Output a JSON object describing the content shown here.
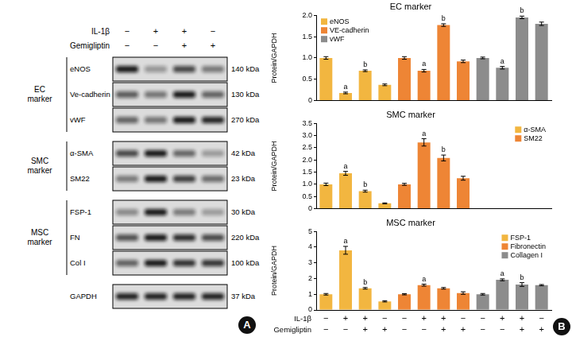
{
  "blot": {
    "panel_label": "A",
    "treatments": [
      {
        "label": "IL-1β",
        "signs": [
          "−",
          "+",
          "+",
          "−"
        ]
      },
      {
        "label": "Gemigliptin",
        "signs": [
          "−",
          "−",
          "+",
          "+"
        ]
      }
    ],
    "groups": [
      {
        "label": "EC marker",
        "proteins": [
          {
            "name": "eNOS",
            "size": "140 kDa"
          },
          {
            "name": "Ve-cadherin",
            "size": "130 kDa"
          },
          {
            "name": "vWF",
            "size": "270 kDa"
          }
        ]
      },
      {
        "label": "SMC marker",
        "proteins": [
          {
            "name": "α-SMA",
            "size": "42 kDa"
          },
          {
            "name": "SM22",
            "size": "23 kDa"
          }
        ]
      },
      {
        "label": "MSC marker",
        "proteins": [
          {
            "name": "FSP-1",
            "size": "30 kDa"
          },
          {
            "name": "FN",
            "size": "220 kDa"
          },
          {
            "name": "Col I",
            "size": "100 kDa"
          }
        ]
      }
    ],
    "loading_control": {
      "name": "GAPDH",
      "size": "37 kDa"
    }
  },
  "chart_panel_label": "B",
  "chart_data": [
    {
      "type": "bar",
      "title": "EC marker",
      "y_label": "Protein/GAPDH",
      "categories": [
        null,
        null,
        null,
        null,
        null,
        null,
        null,
        null,
        null,
        null,
        null,
        null
      ],
      "series": [
        {
          "name": "eNOS",
          "color": "#f2b640",
          "values": [
            1,
            0.18,
            0.7,
            0.37,
            null,
            null,
            null,
            null,
            null,
            null,
            null,
            null
          ],
          "errors": [
            0.03,
            0.02,
            0.02,
            0.02,
            null,
            null,
            null,
            null,
            null,
            null,
            null,
            null
          ],
          "marks": [
            null,
            "a",
            "b",
            null,
            null,
            null,
            null,
            null,
            null,
            null,
            null,
            null
          ]
        },
        {
          "name": "VE-cadherin",
          "color": "#ee8535",
          "values": [
            null,
            null,
            null,
            null,
            1,
            0.7,
            1.77,
            0.92,
            null,
            null,
            null,
            null
          ],
          "errors": [
            null,
            null,
            null,
            null,
            0.03,
            0.03,
            0.03,
            0.03,
            null,
            null,
            null,
            null
          ],
          "marks": [
            null,
            null,
            null,
            null,
            null,
            "a",
            "b",
            null,
            null,
            null,
            null,
            null
          ]
        },
        {
          "name": "vWF",
          "color": "#8c8c8c",
          "values": [
            null,
            null,
            null,
            null,
            null,
            null,
            null,
            null,
            1,
            0.77,
            1.95,
            1.8
          ],
          "errors": [
            null,
            null,
            null,
            null,
            null,
            null,
            null,
            null,
            0.02,
            0.03,
            0.03,
            0.04
          ],
          "marks": [
            null,
            null,
            null,
            null,
            null,
            null,
            null,
            null,
            null,
            "a",
            "b",
            null
          ]
        }
      ],
      "ylim": [
        0,
        2
      ],
      "yticks": [
        0,
        0.5,
        {
          "value": 1,
          "label": "1.0"
        },
        1.5,
        {
          "value": 2,
          "label": "2.0"
        }
      ],
      "grid": false,
      "legend": "upper left",
      "tick_labels": "y"
    },
    {
      "type": "bar",
      "title": "SMC marker",
      "y_label": "Protein/GAPDH",
      "categories": [
        null,
        null,
        null,
        null,
        null,
        null,
        null,
        null,
        null,
        null,
        null,
        null
      ],
      "series": [
        {
          "name": "α-SMA",
          "color": "#f2b640",
          "values": [
            1,
            1.45,
            0.72,
            0.22,
            null,
            null,
            null,
            null,
            null,
            null,
            null,
            null
          ],
          "errors": [
            0.05,
            0.08,
            0.04,
            0.02,
            null,
            null,
            null,
            null,
            null,
            null,
            null,
            null
          ],
          "marks": [
            null,
            "a",
            "b",
            null,
            null,
            null,
            null,
            null,
            null,
            null,
            null,
            null
          ]
        },
        {
          "name": "SM22",
          "color": "#ee8535",
          "values": [
            null,
            null,
            null,
            null,
            1,
            2.72,
            2.08,
            1.25,
            null,
            null,
            null,
            null
          ],
          "errors": [
            null,
            null,
            null,
            null,
            0.04,
            0.15,
            0.12,
            0.08,
            null,
            null,
            null,
            null
          ],
          "marks": [
            null,
            null,
            null,
            null,
            null,
            "a",
            "b",
            null,
            null,
            null,
            null,
            null
          ]
        }
      ],
      "ylim": [
        0,
        3.5
      ],
      "yticks": [
        0,
        0.5,
        {
          "value": 1,
          "label": "1.0"
        },
        1.5,
        {
          "value": 2,
          "label": "2.0"
        },
        2.5,
        {
          "value": 3,
          "label": "3.0"
        },
        3.5
      ],
      "grid": false,
      "legend": "upper right",
      "tick_labels": "y"
    },
    {
      "type": "bar",
      "title": "MSC marker",
      "y_label": "Protein/GAPDH",
      "categories": [
        null,
        null,
        null,
        null,
        null,
        null,
        null,
        null,
        null,
        null,
        null,
        null
      ],
      "series": [
        {
          "name": "FSP-1",
          "color": "#f2b640",
          "values": [
            1,
            3.8,
            1.38,
            0.55,
            null,
            null,
            null,
            null,
            null,
            null,
            null,
            null
          ],
          "errors": [
            0.05,
            0.25,
            0.05,
            0.04,
            null,
            null,
            null,
            null,
            null,
            null,
            null,
            null
          ],
          "marks": [
            null,
            "a",
            "b",
            null,
            null,
            null,
            null,
            null,
            null,
            null,
            null,
            null
          ]
        },
        {
          "name": "Fibronectin",
          "color": "#ee8535",
          "values": [
            null,
            null,
            null,
            null,
            1,
            1.58,
            1.38,
            1.08,
            null,
            null,
            null,
            null
          ],
          "errors": [
            null,
            null,
            null,
            null,
            0.04,
            0.06,
            0.05,
            0.08,
            null,
            null,
            null,
            null
          ],
          "marks": [
            null,
            null,
            null,
            null,
            null,
            "a",
            null,
            null,
            null,
            null,
            null,
            null
          ]
        },
        {
          "name": "Collagen I",
          "color": "#8c8c8c",
          "values": [
            null,
            null,
            null,
            null,
            null,
            null,
            null,
            null,
            1,
            1.92,
            1.62,
            1.58
          ],
          "errors": [
            null,
            null,
            null,
            null,
            null,
            null,
            null,
            null,
            0.05,
            0.06,
            0.12,
            0.04
          ],
          "marks": [
            null,
            null,
            null,
            null,
            null,
            null,
            null,
            null,
            null,
            "a",
            "b",
            null
          ]
        }
      ],
      "ylim": [
        0,
        5
      ],
      "yticks": [
        0,
        1,
        2,
        3,
        4,
        5
      ],
      "grid": false,
      "legend": "upper right",
      "tick_labels": "y",
      "x_rows": [
        {
          "label": "IL-1β",
          "values": [
            "−",
            "+",
            "+",
            "−",
            "−",
            "+",
            "+",
            "−",
            "−",
            "+",
            "+",
            "−"
          ]
        },
        {
          "label": "Gemigliptin",
          "values": [
            "−",
            "−",
            "+",
            "+",
            "−",
            "−",
            "+",
            "+",
            "−",
            "−",
            "+",
            "+"
          ]
        }
      ]
    }
  ]
}
